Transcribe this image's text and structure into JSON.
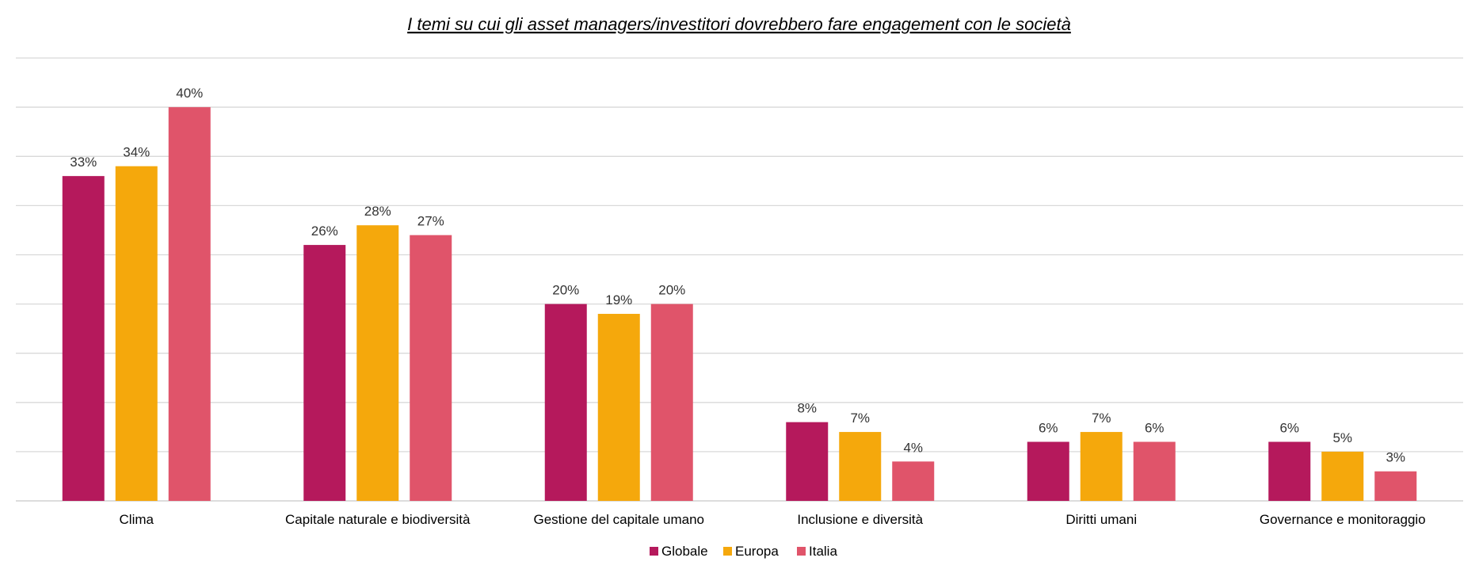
{
  "chart_data": {
    "type": "bar",
    "title": "I temi su cui gli asset managers/investitori dovrebbero fare engagement con le società",
    "xlabel": "",
    "ylabel": "",
    "ylim": [
      0,
      45
    ],
    "grid": true,
    "legend": "bottom",
    "categories": [
      "Clima",
      "Capitale naturale e biodiversità",
      "Gestione del capitale umano",
      "Inclusione e diversità",
      "Diritti umani",
      "Governance e monitoraggio"
    ],
    "series": [
      {
        "name": "Globale",
        "color": "#B5195C",
        "values": [
          33,
          26,
          20,
          8,
          6,
          6
        ],
        "labels": [
          "33%",
          "26%",
          "20%",
          "8%",
          "6%",
          "6%"
        ]
      },
      {
        "name": "Europa",
        "color": "#F5A80C",
        "values": [
          34,
          28,
          19,
          7,
          7,
          5
        ],
        "labels": [
          "34%",
          "28%",
          "19%",
          "7%",
          "7%",
          "5%"
        ]
      },
      {
        "name": "Italia",
        "color": "#E0546A",
        "values": [
          40,
          27,
          20,
          4,
          6,
          3
        ],
        "labels": [
          "40%",
          "27%",
          "20%",
          "4%",
          "6%",
          "3%"
        ]
      }
    ]
  }
}
